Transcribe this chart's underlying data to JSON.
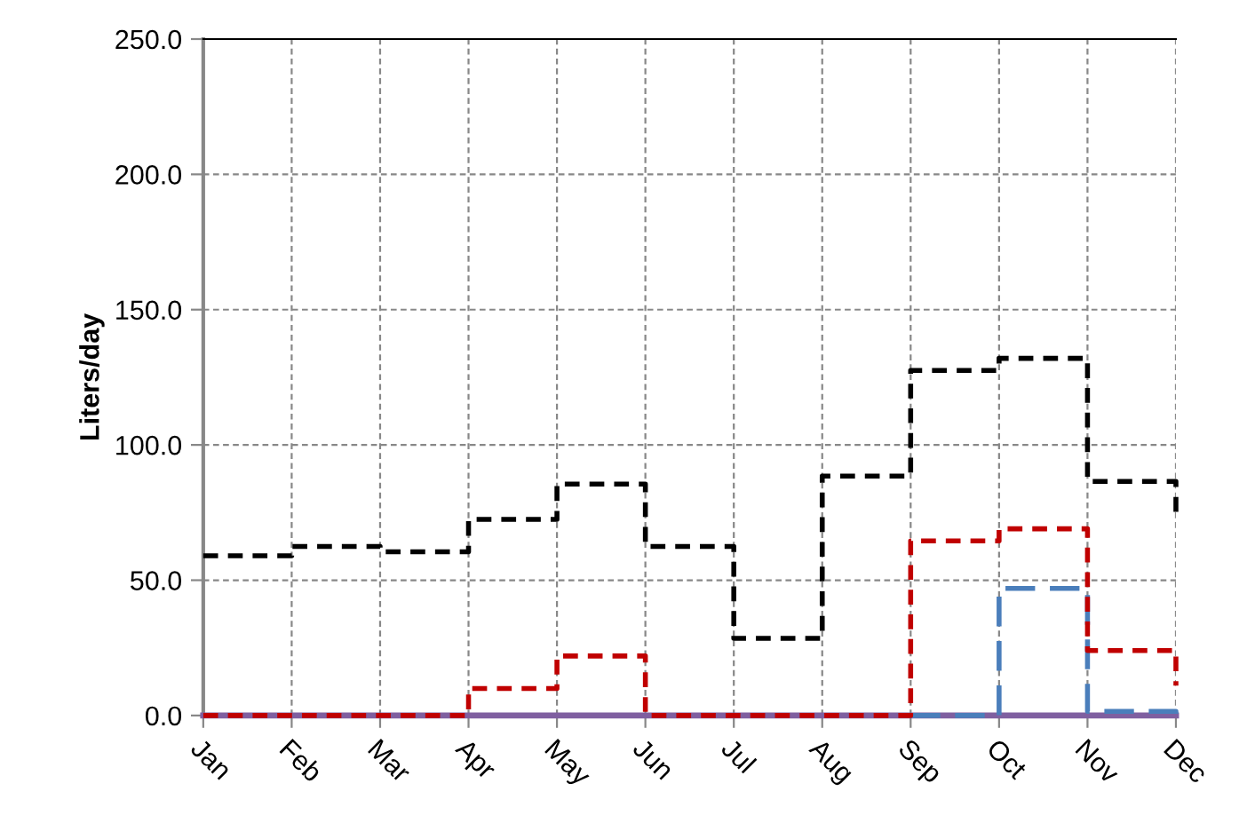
{
  "chart_data": {
    "type": "step",
    "ylabel": "Liters/day",
    "categories": [
      "Jan",
      "Feb",
      "Mar",
      "Apr",
      "May",
      "Jun",
      "Jul",
      "Aug",
      "Sep",
      "Oct",
      "Nov",
      "Dec"
    ],
    "series": [
      {
        "color": "#7f5fa0",
        "line_style": "solid",
        "values": [
          0,
          0,
          0,
          0,
          0,
          0,
          0,
          0,
          0,
          0,
          0,
          0
        ]
      },
      {
        "color": "#000000",
        "line_style": "dashed",
        "values": [
          59,
          62.5,
          60.5,
          72.5,
          85.5,
          62.5,
          28.5,
          88.5,
          127.5,
          132,
          86.5,
          73.5
        ]
      },
      {
        "color": "#c00000",
        "line_style": "dashed",
        "values": [
          0,
          0,
          0,
          10,
          22,
          0,
          0,
          0,
          64.5,
          69,
          24,
          11
        ]
      },
      {
        "color": "#4a7ebb",
        "line_style": "longdash",
        "values": [
          null,
          null,
          null,
          null,
          null,
          null,
          null,
          null,
          0,
          47,
          1.5,
          0
        ]
      }
    ],
    "ylim": [
      0,
      250
    ],
    "yticks": [
      {
        "value": 0,
        "label": "0.0"
      },
      {
        "value": 50,
        "label": "50.0"
      },
      {
        "value": 100,
        "label": "100.0"
      },
      {
        "value": 150,
        "label": "150.0"
      },
      {
        "value": 200,
        "label": "200.0"
      },
      {
        "value": 250,
        "label": "250.0"
      }
    ],
    "grid": true,
    "legend": false
  }
}
